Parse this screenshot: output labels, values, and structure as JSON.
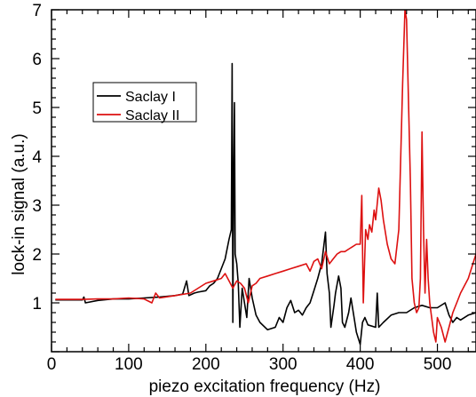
{
  "chart_data": {
    "type": "line",
    "title": "",
    "xlabel": "piezo excitation frequency (Hz)",
    "ylabel": "lock-in signal (a.u.)",
    "xlim": [
      0,
      550
    ],
    "ylim": [
      0,
      7
    ],
    "xticks": [
      0,
      100,
      200,
      300,
      400,
      500
    ],
    "yticks": [
      1,
      2,
      3,
      4,
      5,
      6,
      7
    ],
    "grid": false,
    "legend_position": "upper-left",
    "series": [
      {
        "name": "Saclay I",
        "color": "#000000",
        "points": [
          [
            5,
            1.06
          ],
          [
            20,
            1.06
          ],
          [
            40,
            1.06
          ],
          [
            42,
            1.12
          ],
          [
            44,
            1.0
          ],
          [
            60,
            1.05
          ],
          [
            80,
            1.08
          ],
          [
            100,
            1.08
          ],
          [
            120,
            1.1
          ],
          [
            140,
            1.12
          ],
          [
            160,
            1.15
          ],
          [
            170,
            1.18
          ],
          [
            175,
            1.45
          ],
          [
            178,
            1.15
          ],
          [
            185,
            1.2
          ],
          [
            190,
            1.22
          ],
          [
            200,
            1.25
          ],
          [
            205,
            1.35
          ],
          [
            210,
            1.4
          ],
          [
            215,
            1.5
          ],
          [
            220,
            1.7
          ],
          [
            225,
            1.9
          ],
          [
            230,
            2.3
          ],
          [
            233,
            2.5
          ],
          [
            234,
            5.9
          ],
          [
            235,
            0.6
          ],
          [
            236,
            3.5
          ],
          [
            237,
            5.1
          ],
          [
            238,
            2.0
          ],
          [
            240,
            1.8
          ],
          [
            242,
            1.4
          ],
          [
            244,
            0.5
          ],
          [
            247,
            1.3
          ],
          [
            250,
            1.0
          ],
          [
            253,
            0.7
          ],
          [
            256,
            1.5
          ],
          [
            260,
            1.1
          ],
          [
            265,
            0.75
          ],
          [
            270,
            0.6
          ],
          [
            280,
            0.45
          ],
          [
            290,
            0.5
          ],
          [
            295,
            0.7
          ],
          [
            300,
            0.6
          ],
          [
            305,
            0.9
          ],
          [
            310,
            1.05
          ],
          [
            315,
            0.8
          ],
          [
            320,
            0.85
          ],
          [
            325,
            0.75
          ],
          [
            330,
            0.9
          ],
          [
            335,
            1.0
          ],
          [
            340,
            1.25
          ],
          [
            345,
            1.5
          ],
          [
            350,
            1.8
          ],
          [
            355,
            2.45
          ],
          [
            357,
            1.6
          ],
          [
            360,
            1.2
          ],
          [
            362,
            0.5
          ],
          [
            366,
            0.95
          ],
          [
            368,
            1.2
          ],
          [
            372,
            1.55
          ],
          [
            375,
            1.3
          ],
          [
            377,
            0.6
          ],
          [
            380,
            0.5
          ],
          [
            385,
            0.8
          ],
          [
            388,
            1.1
          ],
          [
            392,
            0.7
          ],
          [
            395,
            0.4
          ],
          [
            400,
            0.15
          ],
          [
            403,
            0.6
          ],
          [
            406,
            0.7
          ],
          [
            410,
            0.55
          ],
          [
            420,
            0.5
          ],
          [
            422,
            1.2
          ],
          [
            424,
            0.5
          ],
          [
            430,
            0.6
          ],
          [
            440,
            0.75
          ],
          [
            450,
            0.8
          ],
          [
            460,
            0.8
          ],
          [
            470,
            0.9
          ],
          [
            480,
            0.95
          ],
          [
            490,
            0.9
          ],
          [
            500,
            0.9
          ],
          [
            510,
            1.0
          ],
          [
            515,
            0.75
          ],
          [
            520,
            0.6
          ],
          [
            525,
            0.7
          ],
          [
            530,
            0.65
          ],
          [
            540,
            0.75
          ],
          [
            550,
            0.8
          ]
        ]
      },
      {
        "name": "Saclay II",
        "color": "#dd1111",
        "points": [
          [
            5,
            1.07
          ],
          [
            20,
            1.07
          ],
          [
            40,
            1.07
          ],
          [
            60,
            1.08
          ],
          [
            80,
            1.08
          ],
          [
            100,
            1.1
          ],
          [
            120,
            1.08
          ],
          [
            130,
            1.0
          ],
          [
            135,
            1.2
          ],
          [
            140,
            1.1
          ],
          [
            160,
            1.15
          ],
          [
            180,
            1.2
          ],
          [
            190,
            1.3
          ],
          [
            200,
            1.4
          ],
          [
            210,
            1.45
          ],
          [
            220,
            1.5
          ],
          [
            225,
            1.6
          ],
          [
            230,
            1.45
          ],
          [
            235,
            1.3
          ],
          [
            240,
            1.45
          ],
          [
            245,
            1.4
          ],
          [
            250,
            1.3
          ],
          [
            255,
            1.0
          ],
          [
            260,
            1.35
          ],
          [
            265,
            1.4
          ],
          [
            270,
            1.5
          ],
          [
            280,
            1.55
          ],
          [
            290,
            1.6
          ],
          [
            300,
            1.65
          ],
          [
            310,
            1.7
          ],
          [
            320,
            1.75
          ],
          [
            330,
            1.8
          ],
          [
            335,
            1.65
          ],
          [
            340,
            1.85
          ],
          [
            345,
            1.9
          ],
          [
            350,
            1.7
          ],
          [
            355,
            2.05
          ],
          [
            360,
            1.8
          ],
          [
            365,
            1.9
          ],
          [
            370,
            2.0
          ],
          [
            375,
            2.05
          ],
          [
            380,
            2.05
          ],
          [
            385,
            2.1
          ],
          [
            390,
            2.15
          ],
          [
            395,
            2.2
          ],
          [
            400,
            2.2
          ],
          [
            402,
            3.2
          ],
          [
            404,
            1.0
          ],
          [
            407,
            2.5
          ],
          [
            410,
            2.3
          ],
          [
            412,
            2.6
          ],
          [
            415,
            2.45
          ],
          [
            418,
            2.9
          ],
          [
            420,
            2.7
          ],
          [
            424,
            3.35
          ],
          [
            427,
            3.1
          ],
          [
            430,
            2.7
          ],
          [
            435,
            2.2
          ],
          [
            440,
            1.9
          ],
          [
            445,
            1.8
          ],
          [
            450,
            2.5
          ],
          [
            455,
            5.5
          ],
          [
            458,
            7.0
          ],
          [
            460,
            6.8
          ],
          [
            462,
            5.5
          ],
          [
            465,
            3.5
          ],
          [
            467,
            1.5
          ],
          [
            470,
            1.0
          ],
          [
            473,
            0.8
          ],
          [
            476,
            0.9
          ],
          [
            478,
            1.5
          ],
          [
            480,
            4.5
          ],
          [
            482,
            2.5
          ],
          [
            484,
            1.2
          ],
          [
            486,
            2.3
          ],
          [
            488,
            1.5
          ],
          [
            490,
            1.0
          ],
          [
            495,
            0.4
          ],
          [
            498,
            0.2
          ],
          [
            500,
            0.7
          ],
          [
            505,
            0.5
          ],
          [
            510,
            0.2
          ],
          [
            515,
            0.5
          ],
          [
            520,
            0.8
          ],
          [
            525,
            1.0
          ],
          [
            530,
            1.2
          ],
          [
            540,
            1.5
          ],
          [
            550,
            2.0
          ]
        ]
      }
    ]
  }
}
